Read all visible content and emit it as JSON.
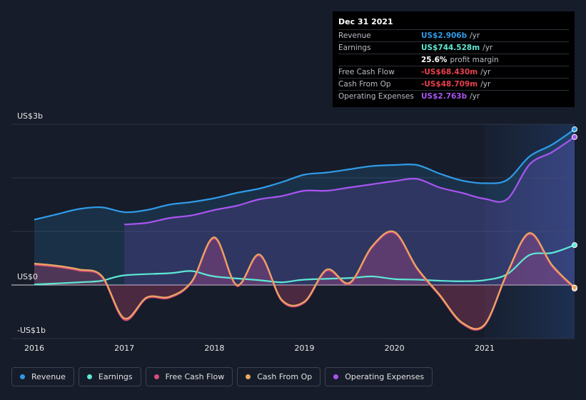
{
  "tooltip": {
    "date": "Dec 31 2021",
    "rows": [
      {
        "label": "Revenue",
        "value": "US$2.906b",
        "suffix": "/yr",
        "color": "#2f9be8"
      },
      {
        "label": "Earnings",
        "value": "US$744.528m",
        "suffix": "/yr",
        "color": "#5de8d5"
      },
      {
        "label": "",
        "value": "25.6%",
        "suffix": "profit margin",
        "color": "#ffffff"
      },
      {
        "label": "Free Cash Flow",
        "value": "-US$68.430m",
        "suffix": "/yr",
        "color": "#e8404e"
      },
      {
        "label": "Cash From Op",
        "value": "-US$48.709m",
        "suffix": "/yr",
        "color": "#e8404e"
      },
      {
        "label": "Operating Expenses",
        "value": "US$2.763b",
        "suffix": "/yr",
        "color": "#a855f0"
      }
    ]
  },
  "legend": [
    {
      "label": "Revenue",
      "color": "#2f9be8"
    },
    {
      "label": "Earnings",
      "color": "#5de8d5"
    },
    {
      "label": "Free Cash Flow",
      "color": "#d94c7e"
    },
    {
      "label": "Cash From Op",
      "color": "#e8a860"
    },
    {
      "label": "Operating Expenses",
      "color": "#a855f0"
    }
  ],
  "chart_data": {
    "type": "line",
    "y_unit": "US$ billions",
    "ylim": [
      -1,
      3
    ],
    "ytick_labels": [
      "US$3b",
      "US$0",
      "-US$1b"
    ],
    "ytick_values": [
      3,
      0,
      -1
    ],
    "xtick_labels": [
      "2016",
      "2017",
      "2018",
      "2019",
      "2020",
      "2021"
    ],
    "xtick_values": [
      2016,
      2017,
      2018,
      2019,
      2020,
      2021
    ],
    "grid": true,
    "legend_position": "bottom",
    "series": [
      {
        "name": "Revenue",
        "color": "#2f9be8",
        "fill": true,
        "x": [
          2016,
          2016.25,
          2016.5,
          2016.75,
          2017,
          2017.25,
          2017.5,
          2017.75,
          2018,
          2018.25,
          2018.5,
          2018.75,
          2019,
          2019.25,
          2019.5,
          2019.75,
          2020,
          2020.25,
          2020.5,
          2020.75,
          2021,
          2021.25,
          2021.5,
          2021.75,
          2022
        ],
        "y": [
          1.22,
          1.32,
          1.42,
          1.45,
          1.36,
          1.4,
          1.5,
          1.55,
          1.62,
          1.72,
          1.8,
          1.92,
          2.06,
          2.1,
          2.16,
          2.22,
          2.24,
          2.24,
          2.08,
          1.95,
          1.9,
          1.96,
          2.4,
          2.62,
          2.906
        ]
      },
      {
        "name": "Earnings",
        "color": "#5de8d5",
        "fill": false,
        "x": [
          2016,
          2016.5,
          2016.75,
          2017,
          2017.5,
          2017.75,
          2018,
          2018.5,
          2018.75,
          2019,
          2019.5,
          2019.75,
          2020,
          2020.25,
          2020.5,
          2020.75,
          2021,
          2021.25,
          2021.5,
          2021.75,
          2022
        ],
        "y": [
          0.01,
          0.05,
          0.08,
          0.18,
          0.22,
          0.26,
          0.16,
          0.09,
          0.05,
          0.1,
          0.13,
          0.16,
          0.11,
          0.1,
          0.08,
          0.07,
          0.09,
          0.2,
          0.56,
          0.6,
          0.745
        ]
      },
      {
        "name": "Free Cash Flow",
        "color": "#d94c7e",
        "fill": true,
        "x": [
          2016,
          2016.25,
          2016.5,
          2016.75,
          2017,
          2017.25,
          2017.5,
          2017.75,
          2018,
          2018.25,
          2018.5,
          2018.75,
          2019,
          2019.25,
          2019.5,
          2019.75,
          2020,
          2020.25,
          2020.5,
          2020.75,
          2021,
          2021.25,
          2021.5,
          2021.75,
          2022
        ],
        "y": [
          0.38,
          0.34,
          0.27,
          0.15,
          -0.65,
          -0.25,
          -0.24,
          0.05,
          0.87,
          -0.02,
          0.55,
          -0.3,
          -0.33,
          0.27,
          0.02,
          0.7,
          0.97,
          0.3,
          -0.2,
          -0.72,
          -0.76,
          0.2,
          0.95,
          0.35,
          -0.068
        ]
      },
      {
        "name": "Cash From Op",
        "color": "#e8a860",
        "fill": false,
        "x": [
          2016,
          2016.25,
          2016.5,
          2016.75,
          2017,
          2017.25,
          2017.5,
          2017.75,
          2018,
          2018.25,
          2018.5,
          2018.75,
          2019,
          2019.25,
          2019.5,
          2019.75,
          2020,
          2020.25,
          2020.5,
          2020.75,
          2021,
          2021.25,
          2021.5,
          2021.75,
          2022
        ],
        "y": [
          0.4,
          0.36,
          0.29,
          0.17,
          -0.62,
          -0.23,
          -0.22,
          0.07,
          0.89,
          0.0,
          0.57,
          -0.28,
          -0.31,
          0.29,
          0.04,
          0.72,
          0.99,
          0.32,
          -0.18,
          -0.7,
          -0.74,
          0.22,
          0.97,
          0.37,
          -0.049
        ]
      },
      {
        "name": "Operating Expenses",
        "color": "#a855f0",
        "fill": true,
        "x": [
          2017,
          2017.25,
          2017.5,
          2017.75,
          2018,
          2018.25,
          2018.5,
          2018.75,
          2019,
          2019.25,
          2019.5,
          2019.75,
          2020,
          2020.25,
          2020.5,
          2020.75,
          2021,
          2021.25,
          2021.5,
          2021.75,
          2022
        ],
        "y": [
          1.13,
          1.16,
          1.25,
          1.3,
          1.4,
          1.48,
          1.6,
          1.66,
          1.76,
          1.76,
          1.82,
          1.88,
          1.94,
          1.98,
          1.82,
          1.72,
          1.61,
          1.6,
          2.25,
          2.48,
          2.763
        ]
      }
    ]
  }
}
